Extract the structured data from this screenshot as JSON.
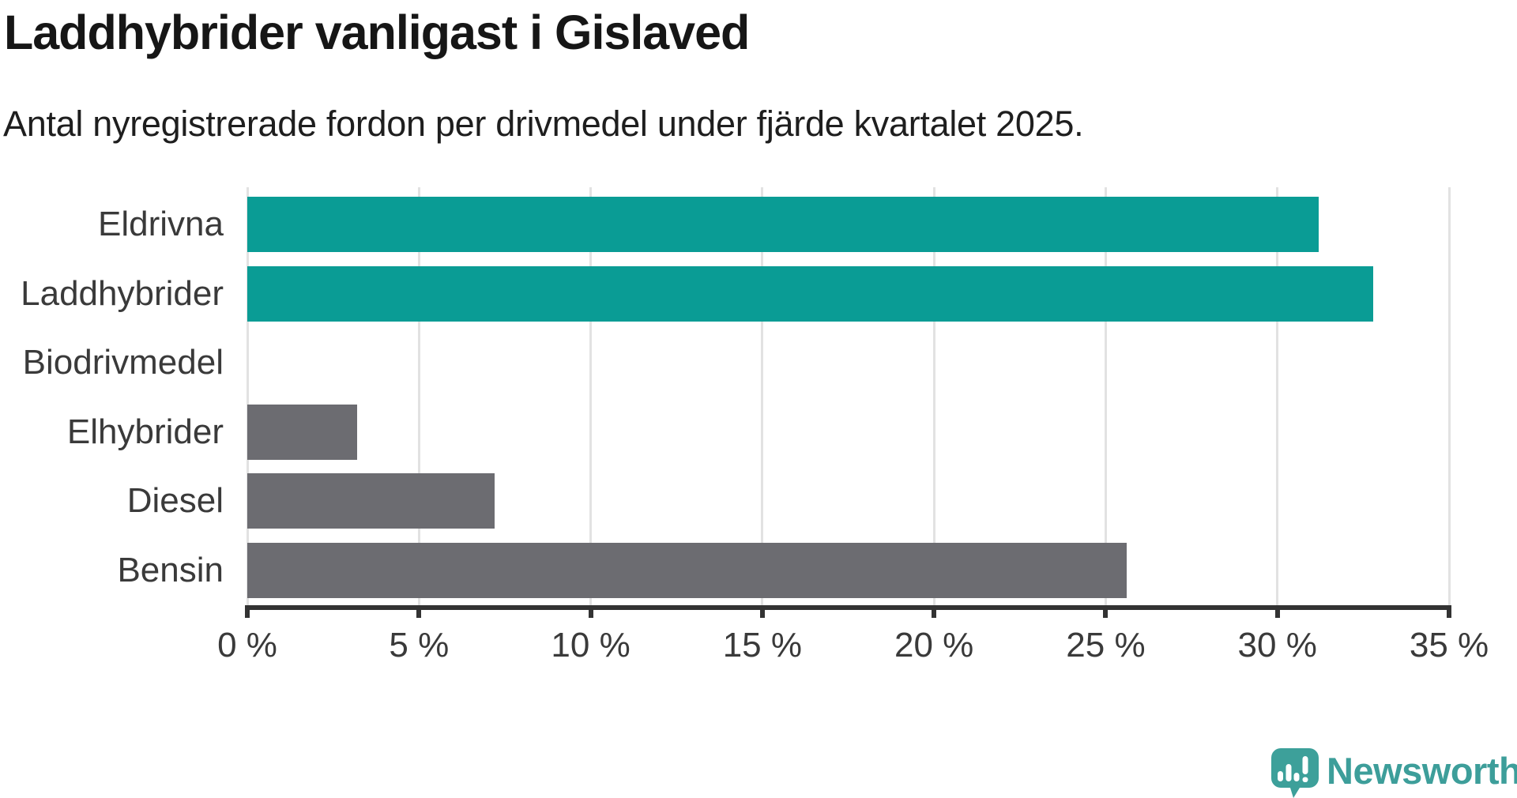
{
  "header": {
    "title": "Laddhybrider vanligast i Gislaved",
    "subtitle": "Antal nyregistrerade fordon per drivmedel under fjärde kvartalet 2025."
  },
  "chart_data": {
    "type": "bar",
    "orientation": "horizontal",
    "title": "Laddhybrider vanligast i Gislaved",
    "subtitle": "Antal nyregistrerade fordon per drivmedel under fjärde kvartalet 2025.",
    "categories": [
      "Eldrivna",
      "Laddhybrider",
      "Biodrivmedel",
      "Elhybrider",
      "Diesel",
      "Bensin"
    ],
    "values": [
      31.2,
      32.8,
      0,
      3.2,
      7.2,
      25.6
    ],
    "unit": "%",
    "xlabel": "",
    "ylabel": "",
    "xlim": [
      0,
      35
    ],
    "x_ticks": [
      0,
      5,
      10,
      15,
      20,
      25,
      30,
      35
    ],
    "x_tick_labels": [
      "0 %",
      "5 %",
      "10 %",
      "15 %",
      "20 %",
      "25 %",
      "30 %",
      "35 %"
    ],
    "grid": "vertical",
    "legend": "none",
    "colors": {
      "highlight": "#0a9c95",
      "default": "#6c6c71",
      "bar_colors": [
        "#0a9c95",
        "#0a9c95",
        "#6c6c71",
        "#6c6c71",
        "#6c6c71",
        "#6c6c71"
      ],
      "gridline": "#e2e2e2",
      "axis": "#333333",
      "label_text": "#3a3a3a"
    }
  },
  "branding": {
    "logo_text": "Newsworthy",
    "logo_color": "#3d9e9a",
    "icon_color": "#3da09a"
  }
}
